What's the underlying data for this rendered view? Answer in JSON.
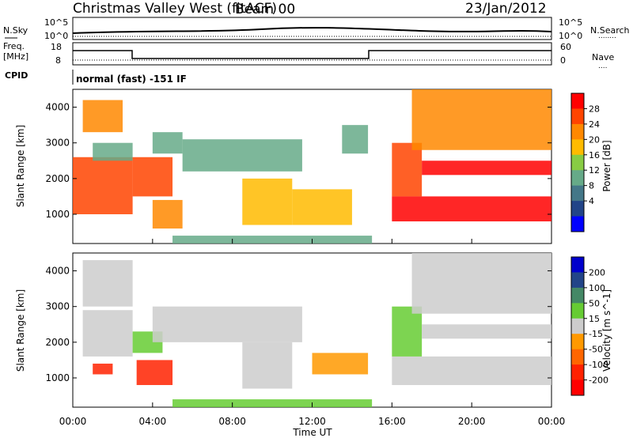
{
  "header": {
    "station": "Christmas Valley West (fitACF)",
    "beam": "Beam 00",
    "date": "23/Jan/2012"
  },
  "noise_panel": {
    "left_label": "N.Sky",
    "right_label": "N.Search",
    "right_legend": "........",
    "left_ticks": [
      "10^5",
      "10^0"
    ],
    "right_ticks": [
      "10^5",
      "10^0"
    ]
  },
  "freq_panel": {
    "left_label_1": "Freq.",
    "left_label_2": "[MHz]",
    "right_label": "Nave",
    "right_legend": "....",
    "left_ticks": [
      "18",
      "8"
    ],
    "right_ticks": [
      "60",
      "0"
    ]
  },
  "cpid": {
    "label": "CPID",
    "program": "normal (fast) -151 IF"
  },
  "time_axis": {
    "label": "Time UT",
    "ticks": [
      "00:00",
      "04:00",
      "08:00",
      "12:00",
      "16:00",
      "20:00",
      "00:00"
    ]
  },
  "chart_data": [
    {
      "type": "heatmap",
      "title": "",
      "xlabel": "",
      "ylabel": "Slant Range [km]",
      "xlim": [
        "00:00",
        "24:00"
      ],
      "ylim": [
        180,
        4500
      ],
      "yticks": [
        "1000",
        "2000",
        "3000",
        "4000"
      ],
      "colorbar": {
        "label": "Power [dB]",
        "ticks": [
          "28",
          "24",
          "20",
          "16",
          "12",
          "8",
          "4"
        ],
        "colors": [
          "#ff0000",
          "#ff4400",
          "#ff8800",
          "#ffbb00",
          "#88cc44",
          "#66aa88",
          "#447788",
          "#224488",
          "#0000ff"
        ]
      },
      "regions": [
        {
          "t0": 0.0,
          "t1": 3.0,
          "r0": 1000,
          "r1": 2600,
          "value": 24
        },
        {
          "t0": 1.0,
          "t1": 3.0,
          "r0": 2500,
          "r1": 3000,
          "value": 10
        },
        {
          "t0": 0.5,
          "t1": 2.5,
          "r0": 3300,
          "r1": 4200,
          "value": 22
        },
        {
          "t0": 3.0,
          "t1": 5.0,
          "r0": 1500,
          "r1": 2600,
          "value": 26
        },
        {
          "t0": 4.0,
          "t1": 5.5,
          "r0": 2700,
          "r1": 3300,
          "value": 10
        },
        {
          "t0": 4.0,
          "t1": 5.5,
          "r0": 600,
          "r1": 1400,
          "value": 20
        },
        {
          "t0": 5.5,
          "t1": 11.5,
          "r0": 2200,
          "r1": 3100,
          "value": 9
        },
        {
          "t0": 8.5,
          "t1": 11.0,
          "r0": 700,
          "r1": 2000,
          "value": 18
        },
        {
          "t0": 11.0,
          "t1": 14.0,
          "r0": 700,
          "r1": 1700,
          "value": 16
        },
        {
          "t0": 13.5,
          "t1": 14.8,
          "r0": 2700,
          "r1": 3500,
          "value": 8
        },
        {
          "t0": 16.0,
          "t1": 24.0,
          "r0": 800,
          "r1": 1500,
          "value": 30
        },
        {
          "t0": 16.0,
          "t1": 17.5,
          "r0": 1500,
          "r1": 3000,
          "value": 26
        },
        {
          "t0": 17.5,
          "t1": 24.0,
          "r0": 2100,
          "r1": 2500,
          "value": 28
        },
        {
          "t0": 17.0,
          "t1": 24.0,
          "r0": 2800,
          "r1": 4500,
          "value": 22
        },
        {
          "t0": 5.0,
          "t1": 15.0,
          "r0": 180,
          "r1": 400,
          "value": 8
        }
      ]
    },
    {
      "type": "heatmap",
      "title": "",
      "xlabel": "Time UT",
      "ylabel": "Slant Range [km]",
      "xlim": [
        "00:00",
        "24:00"
      ],
      "ylim": [
        180,
        4500
      ],
      "yticks": [
        "1000",
        "2000",
        "3000",
        "4000"
      ],
      "colorbar": {
        "label": "Velocity [m s^-1]",
        "ticks": [
          "200",
          "100",
          "50",
          "15",
          "-15",
          "-50",
          "-100",
          "-200"
        ],
        "colors": [
          "#0000cc",
          "#224488",
          "#448866",
          "#66cc33",
          "#cccccc",
          "#ff9900",
          "#ff6600",
          "#ff2200",
          "#ff0000"
        ]
      },
      "regions": [
        {
          "t0": 0.5,
          "t1": 3.0,
          "r0": 1600,
          "r1": 2900,
          "value": 0
        },
        {
          "t0": 0.5,
          "t1": 3.0,
          "r0": 3000,
          "r1": 4300,
          "value": 0
        },
        {
          "t0": 1.0,
          "t1": 2.0,
          "r0": 1100,
          "r1": 1400,
          "value": -200
        },
        {
          "t0": 3.0,
          "t1": 4.5,
          "r0": 1700,
          "r1": 2300,
          "value": 30
        },
        {
          "t0": 3.2,
          "t1": 5.0,
          "r0": 800,
          "r1": 1500,
          "value": -150
        },
        {
          "t0": 4.0,
          "t1": 11.5,
          "r0": 2000,
          "r1": 3000,
          "value": 0
        },
        {
          "t0": 8.5,
          "t1": 11.0,
          "r0": 700,
          "r1": 2000,
          "value": 0
        },
        {
          "t0": 12.0,
          "t1": 14.8,
          "r0": 1100,
          "r1": 1700,
          "value": -50
        },
        {
          "t0": 16.0,
          "t1": 24.0,
          "r0": 800,
          "r1": 1600,
          "value": 0
        },
        {
          "t0": 16.0,
          "t1": 17.5,
          "r0": 1600,
          "r1": 3000,
          "value": 30
        },
        {
          "t0": 17.5,
          "t1": 24.0,
          "r0": 2100,
          "r1": 2500,
          "value": 0
        },
        {
          "t0": 17.0,
          "t1": 24.0,
          "r0": 2800,
          "r1": 4500,
          "value": 0
        },
        {
          "t0": 5.0,
          "t1": 15.0,
          "r0": 180,
          "r1": 400,
          "value": 30
        }
      ]
    }
  ]
}
